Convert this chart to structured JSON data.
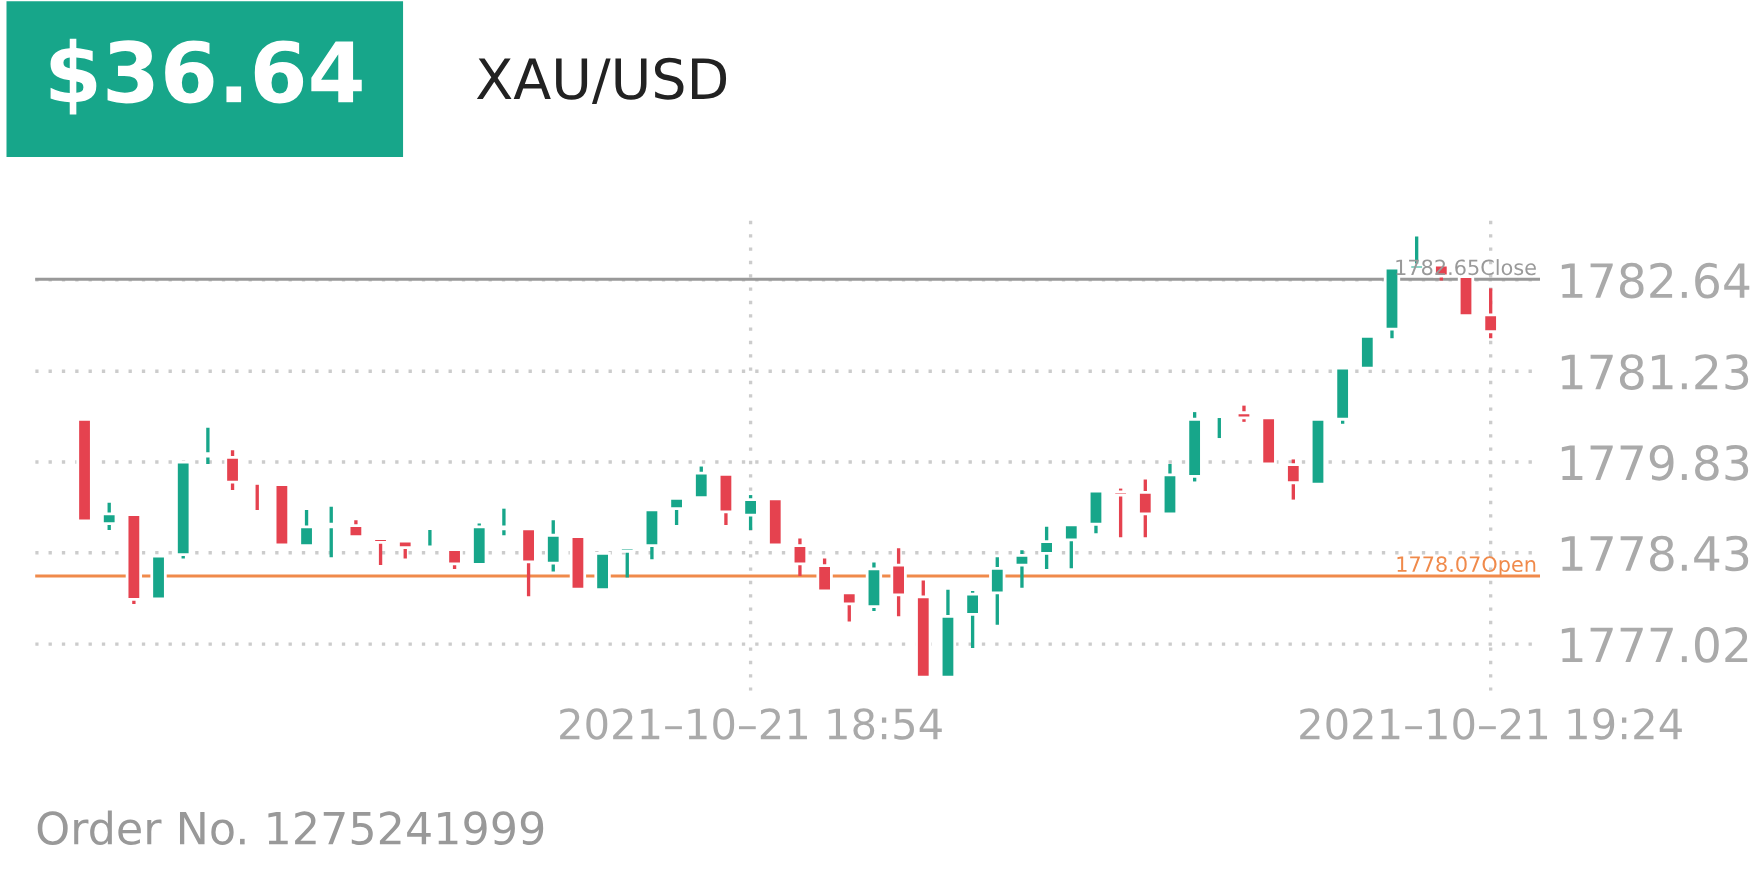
{
  "chart_data": {
    "type": "candlestick",
    "title": "$36.64",
    "subtitle": "XAU/USD",
    "annotations": [
      "Order No. 1275241999"
    ],
    "x": [
      "2021-10-21T18:27",
      "2021-10-21T18:28",
      "2021-10-21T18:29",
      "2021-10-21T18:30",
      "2021-10-21T18:31",
      "2021-10-21T18:32",
      "2021-10-21T18:33",
      "2021-10-21T18:34",
      "2021-10-21T18:35",
      "2021-10-21T18:36",
      "2021-10-21T18:37",
      "2021-10-21T18:38",
      "2021-10-21T18:39",
      "2021-10-21T18:40",
      "2021-10-21T18:41",
      "2021-10-21T18:42",
      "2021-10-21T18:43",
      "2021-10-21T18:44",
      "2021-10-21T18:45",
      "2021-10-21T18:46",
      "2021-10-21T18:47",
      "2021-10-21T18:48",
      "2021-10-21T18:49",
      "2021-10-21T18:50",
      "2021-10-21T18:51",
      "2021-10-21T18:52",
      "2021-10-21T18:53",
      "2021-10-21T18:54",
      "2021-10-21T18:55",
      "2021-10-21T18:56",
      "2021-10-21T18:57",
      "2021-10-21T18:58",
      "2021-10-21T18:59",
      "2021-10-21T19:00",
      "2021-10-21T19:01",
      "2021-10-21T19:02",
      "2021-10-21T19:03",
      "2021-10-21T19:04",
      "2021-10-21T19:05",
      "2021-10-21T19:06",
      "2021-10-21T19:07",
      "2021-10-21T19:08",
      "2021-10-21T19:09",
      "2021-10-21T19:10",
      "2021-10-21T19:11",
      "2021-10-21T19:12",
      "2021-10-21T19:13",
      "2021-10-21T19:14",
      "2021-10-21T19:15",
      "2021-10-21T19:16",
      "2021-10-21T19:17",
      "2021-10-21T19:18",
      "2021-10-21T19:19",
      "2021-10-21T19:20",
      "2021-10-21T19:21",
      "2021-10-21T19:22",
      "2021-10-21T19:23",
      "2021-10-21T19:24"
    ],
    "ohlc": [
      [
        1780.49,
        1780.49,
        1778.92,
        1778.92
      ],
      [
        1778.88,
        1779.2,
        1778.78,
        1779.03
      ],
      [
        1779.02,
        1779.02,
        1777.64,
        1777.71
      ],
      [
        1777.72,
        1778.38,
        1777.7,
        1778.38
      ],
      [
        1778.4,
        1779.83,
        1778.34,
        1779.83
      ],
      [
        1779.92,
        1780.36,
        1779.8,
        1779.96
      ],
      [
        1779.9,
        1780.01,
        1779.4,
        1779.52
      ],
      [
        1779.54,
        1779.54,
        1779.09,
        1779.5
      ],
      [
        1779.48,
        1779.48,
        1778.55,
        1778.55
      ],
      [
        1778.54,
        1779.09,
        1778.54,
        1778.83
      ],
      [
        1778.83,
        1779.14,
        1778.36,
        1778.87
      ],
      [
        1778.85,
        1778.93,
        1778.68,
        1778.68
      ],
      [
        1778.65,
        1778.65,
        1778.24,
        1778.59
      ],
      [
        1778.61,
        1778.61,
        1778.34,
        1778.51
      ],
      [
        1778.48,
        1778.78,
        1778.48,
        1778.52
      ],
      [
        1778.48,
        1778.48,
        1778.18,
        1778.26
      ],
      [
        1778.25,
        1778.88,
        1778.25,
        1778.83
      ],
      [
        1778.8,
        1779.11,
        1778.7,
        1778.83
      ],
      [
        1778.8,
        1778.8,
        1777.76,
        1778.29
      ],
      [
        1778.27,
        1778.93,
        1778.14,
        1778.7
      ],
      [
        1778.68,
        1778.68,
        1777.87,
        1777.87
      ],
      [
        1777.86,
        1778.42,
        1777.86,
        1778.42
      ],
      [
        1778.45,
        1778.5,
        1778.05,
        1778.5
      ],
      [
        1778.54,
        1779.09,
        1778.33,
        1779.09
      ],
      [
        1779.11,
        1779.27,
        1778.86,
        1779.27
      ],
      [
        1779.28,
        1779.76,
        1779.28,
        1779.66
      ],
      [
        1779.64,
        1779.64,
        1778.86,
        1779.06
      ],
      [
        1779.01,
        1779.32,
        1778.78,
        1779.25
      ],
      [
        1779.26,
        1779.26,
        1778.55,
        1778.55
      ],
      [
        1778.54,
        1778.65,
        1778.07,
        1778.26
      ],
      [
        1778.23,
        1778.34,
        1777.84,
        1777.84
      ],
      [
        1777.81,
        1777.81,
        1777.37,
        1777.64
      ],
      [
        1777.6,
        1778.28,
        1777.53,
        1778.18
      ],
      [
        1778.24,
        1778.5,
        1777.45,
        1777.78
      ],
      [
        1777.75,
        1778.0,
        1776.51,
        1776.51
      ],
      [
        1776.51,
        1777.86,
        1776.51,
        1777.45
      ],
      [
        1777.48,
        1777.84,
        1776.96,
        1777.79
      ],
      [
        1777.81,
        1778.36,
        1777.32,
        1778.19
      ],
      [
        1778.24,
        1778.47,
        1777.89,
        1778.39
      ],
      [
        1778.42,
        1778.83,
        1778.18,
        1778.6
      ],
      [
        1778.63,
        1778.86,
        1778.19,
        1778.86
      ],
      [
        1778.87,
        1779.38,
        1778.73,
        1779.38
      ],
      [
        1779.37,
        1779.42,
        1778.67,
        1779.32
      ],
      [
        1779.36,
        1779.56,
        1778.67,
        1779.03
      ],
      [
        1779.03,
        1779.8,
        1779.03,
        1779.63
      ],
      [
        1779.61,
        1780.6,
        1779.53,
        1780.49
      ],
      [
        1780.53,
        1780.57,
        1780.2,
        1780.57
      ],
      [
        1780.59,
        1780.7,
        1780.45,
        1780.51
      ],
      [
        1780.51,
        1780.51,
        1779.8,
        1779.8
      ],
      [
        1779.79,
        1779.87,
        1779.25,
        1779.51
      ],
      [
        1779.49,
        1780.49,
        1779.49,
        1780.49
      ],
      [
        1780.49,
        1781.28,
        1780.42,
        1781.28
      ],
      [
        1781.28,
        1781.77,
        1781.28,
        1781.77
      ],
      [
        1781.88,
        1782.82,
        1781.74,
        1782.82
      ],
      [
        1782.81,
        1783.31,
        1782.81,
        1782.87
      ],
      [
        1782.87,
        1782.87,
        1782.63,
        1782.7
      ],
      [
        1782.69,
        1782.69,
        1782.09,
        1782.09
      ],
      [
        1782.1,
        1782.51,
        1781.74,
        1781.84
      ]
    ],
    "xlim": [
      "2021-10-21T18:25",
      "2021-10-21T19:26"
    ],
    "xticks": [
      {
        "value": "2021-10-21T18:54",
        "label": "2021–10–21 18:54"
      },
      {
        "value": "2021-10-21T19:24",
        "label": "2021–10–21 19:24"
      }
    ],
    "ylim": [
      1776.3,
      1783.7
    ],
    "yticks": [
      1777.02,
      1778.43,
      1779.83,
      1781.23,
      1782.64
    ],
    "ref_lines": [
      {
        "axis": "y",
        "value": 1782.65,
        "label": "1782.65Close",
        "color": "#999999"
      },
      {
        "axis": "y",
        "value": 1778.07,
        "label": "1778.07Open",
        "color": "#f08a4b"
      }
    ],
    "grid": true
  }
}
